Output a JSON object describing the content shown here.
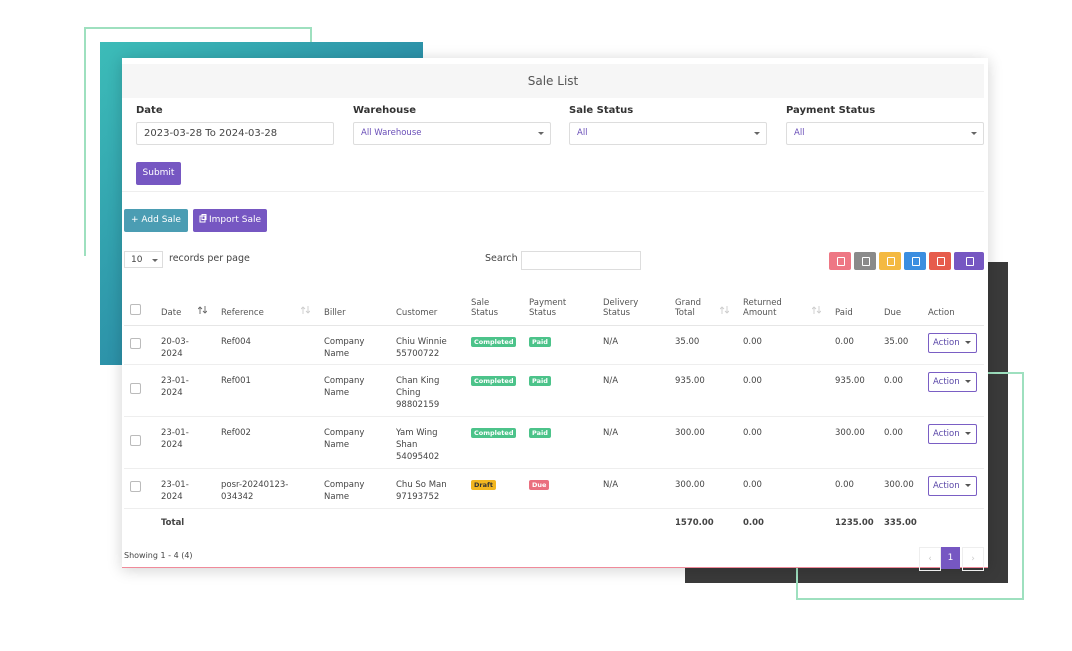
{
  "card_title": "Sale List",
  "filters": [
    {
      "label": "Date",
      "value": "2023-03-28 To 2024-03-28"
    },
    {
      "label": "Warehouse",
      "value": "All Warehouse"
    },
    {
      "label": "Sale Status",
      "value": "All"
    },
    {
      "label": "Payment Status",
      "value": "All"
    }
  ],
  "submit": "Submit",
  "buttons": [
    "+ Add Sale",
    "Import Sale"
  ],
  "records_per_page": {
    "value": "10",
    "label": "records per page"
  },
  "search_label": "Search",
  "table": {
    "columns": [
      {
        "label": "Date",
        "sortable": true
      },
      {
        "label": "Reference",
        "sortable": true
      },
      {
        "label": "Biller",
        "sortable": false
      },
      {
        "label": "Customer",
        "sortable": false
      },
      {
        "label": "Sale Status",
        "sortable": false
      },
      {
        "label": "Payment Status",
        "sortable": false
      },
      {
        "label": "Delivery Status",
        "sortable": false
      },
      {
        "label": "Grand Total",
        "sortable": true
      },
      {
        "label": "Returned Amount",
        "sortable": true
      },
      {
        "label": "Paid",
        "sortable": false
      },
      {
        "label": "Due",
        "sortable": false
      },
      {
        "label": "Action",
        "sortable": false
      }
    ],
    "rows": [
      [
        "20-03-2024",
        "Ref004",
        "Company Name",
        "Chiu Winnie 55700722",
        {
          "text": "Completed",
          "color": "#4cc38a"
        },
        {
          "text": "Paid",
          "color": "#4cc38a"
        },
        "N/A",
        "35.00",
        "0.00",
        "0.00",
        "35.00",
        "Action"
      ],
      [
        "23-01-2024",
        "Ref001",
        "Company Name",
        "Chan King Ching 98802159",
        {
          "text": "Completed",
          "color": "#4cc38a"
        },
        {
          "text": "Paid",
          "color": "#4cc38a"
        },
        "N/A",
        "935.00",
        "0.00",
        "935.00",
        "0.00",
        "Action"
      ],
      [
        "23-01-2024",
        "Ref002",
        "Company Name",
        "Yam Wing Shan 54095402",
        {
          "text": "Completed",
          "color": "#4cc38a"
        },
        {
          "text": "Paid",
          "color": "#4cc38a"
        },
        "N/A",
        "300.00",
        "0.00",
        "300.00",
        "0.00",
        "Action"
      ],
      [
        "23-01-2024",
        "posr-20240123-034342",
        "Company Name",
        "Chu So Man 97193752",
        {
          "text": "Draft",
          "color": "#f2b620"
        },
        {
          "text": "Due",
          "color": "#ea6f7f"
        },
        "N/A",
        "300.00",
        "0.00",
        "0.00",
        "300.00",
        "Action"
      ]
    ],
    "total": {
      "label": "Total",
      "grand_total": "1570.00",
      "returned": "0.00",
      "paid": "1235.00",
      "due": "335.00"
    }
  },
  "footer": {
    "showing": "Showing 1 - 4 (4)",
    "page": "1"
  }
}
